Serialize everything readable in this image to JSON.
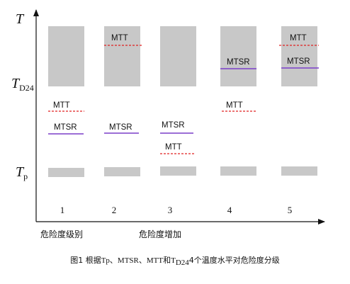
{
  "axis": {
    "y_top": "T",
    "y_mid_main": "T",
    "y_mid_sub": "D24",
    "y_low_main": "T",
    "y_low_sub": "p"
  },
  "columns": [
    "1",
    "2",
    "3",
    "4",
    "5"
  ],
  "labels": {
    "mtt": "MTT",
    "mtsr": "MTSR"
  },
  "axis_notes": {
    "left": "危险度级别",
    "right": "危险度增加"
  },
  "caption": {
    "prefix": "图1 根据",
    "mid": "Tp、MTSR、MTT和T",
    "sub": "D24",
    "suffix": "4个温度水平对危险度分级"
  },
  "colors": {
    "block": "#c8c8c8",
    "mtt_line": "#e02020",
    "mtsr_line": "#7b3fc9",
    "axis": "#111111"
  }
}
